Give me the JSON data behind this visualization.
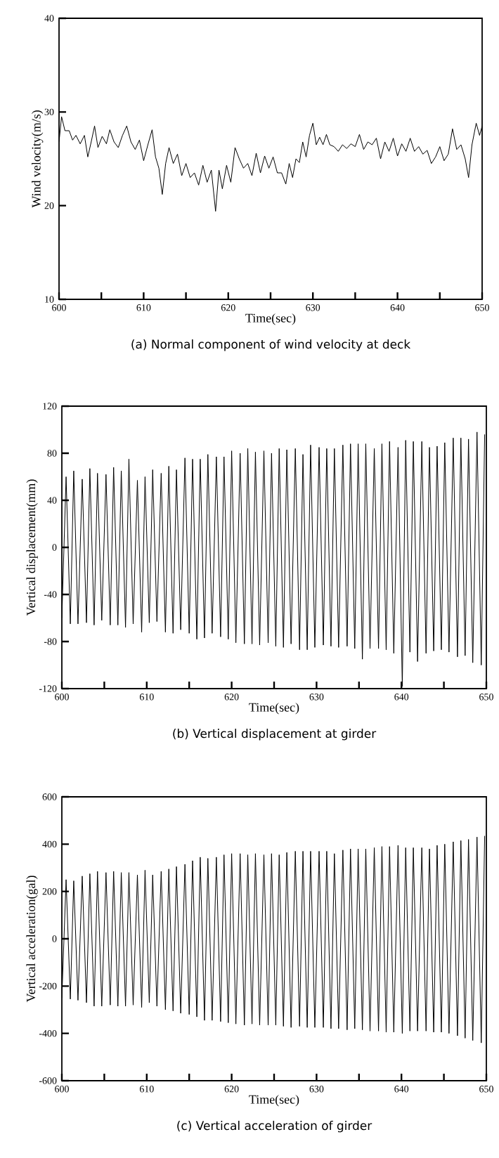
{
  "chart_data": [
    {
      "type": "line",
      "title": "(a)  Normal component of wind velocity at deck",
      "xlabel": "Time(sec)",
      "ylabel": "Wind velocity(m/s)",
      "color": "#000000",
      "x": [
        600.0,
        600.3,
        600.7,
        601.2,
        601.6,
        602.0,
        602.5,
        603.0,
        603.4,
        603.8,
        604.2,
        604.6,
        605.1,
        605.6,
        606.0,
        606.5,
        607.0,
        607.5,
        608.0,
        608.5,
        609.0,
        609.5,
        610.0,
        610.5,
        611.0,
        611.4,
        611.8,
        612.2,
        612.6,
        613.0,
        613.5,
        614.0,
        614.5,
        615.0,
        615.5,
        616.0,
        616.5,
        617.0,
        617.5,
        618.0,
        618.5,
        618.9,
        619.3,
        619.8,
        620.3,
        620.8,
        621.3,
        621.8,
        622.3,
        622.8,
        623.3,
        623.8,
        624.3,
        624.8,
        625.3,
        625.8,
        626.3,
        626.8,
        627.2,
        627.6,
        628.0,
        628.4,
        628.8,
        629.2,
        629.6,
        630.0,
        630.4,
        630.8,
        631.2,
        631.6,
        632.0,
        632.5,
        633.0,
        633.5,
        634.0,
        634.5,
        635.0,
        635.5,
        636.0,
        636.5,
        637.0,
        637.5,
        638.0,
        638.5,
        639.0,
        639.5,
        640.0,
        640.5,
        641.0,
        641.5,
        642.0,
        642.5,
        643.0,
        643.5,
        644.0,
        644.5,
        645.0,
        645.5,
        646.0,
        646.5,
        647.0,
        647.5,
        648.0,
        648.4,
        648.8,
        649.3,
        649.7,
        650.0
      ],
      "values": [
        26.8,
        29.5,
        28,
        28,
        27,
        27.5,
        26.6,
        27.5,
        25.2,
        26.8,
        28.5,
        26.2,
        27.4,
        26.6,
        28.1,
        26.8,
        26.2,
        27.5,
        28.5,
        26.8,
        26,
        27,
        24.8,
        26.5,
        28.1,
        25.2,
        24,
        21.2,
        24.5,
        26.2,
        24.5,
        25.5,
        23.2,
        24.5,
        23,
        23.5,
        22.2,
        24.3,
        22.5,
        23.8,
        19.4,
        23.8,
        21.8,
        24.3,
        22.5,
        26.2,
        25,
        24,
        24.5,
        23.2,
        25.6,
        23.5,
        25.3,
        24,
        25.2,
        23.5,
        23.5,
        22.3,
        24.5,
        23,
        25,
        24.6,
        26.8,
        25.2,
        27.5,
        28.8,
        26.5,
        27.3,
        26.5,
        27.6,
        26.5,
        26.3,
        25.8,
        26.5,
        26.1,
        26.6,
        26.3,
        27.6,
        26,
        26.8,
        26.5,
        27.2,
        25,
        26.8,
        25.8,
        27.2,
        25.3,
        26.6,
        25.8,
        27.2,
        25.8,
        26.3,
        25.5,
        25.9,
        24.5,
        25.2,
        26.3,
        24.8,
        25.5,
        28.2,
        26,
        26.5,
        25,
        23,
        26.5,
        28.8,
        27.5,
        28.5
      ],
      "xlim": [
        600,
        650
      ],
      "ylim": [
        10,
        40
      ],
      "xticks": [
        600,
        {
          "value": 605,
          "label": null
        },
        610,
        {
          "value": 615,
          "label": null
        },
        620,
        {
          "value": 625,
          "label": null
        },
        630,
        {
          "value": 635,
          "label": null
        },
        640,
        {
          "value": 645,
          "label": null
        },
        650
      ],
      "yticks": [
        10,
        20,
        30,
        40
      ]
    },
    {
      "type": "line",
      "title": "(b)  Vertical displacement at girder",
      "xlabel": "Time(sec)",
      "ylabel": "Vertical displacement(mm)",
      "color": "#000000",
      "x": [
        600.0,
        600.5,
        601.0,
        601.4,
        601.9,
        602.4,
        602.9,
        603.3,
        603.8,
        604.2,
        604.7,
        605.2,
        605.7,
        606.1,
        606.6,
        607.0,
        607.5,
        607.9,
        608.4,
        608.9,
        609.4,
        609.8,
        610.3,
        610.7,
        611.2,
        611.7,
        612.2,
        612.6,
        613.1,
        613.5,
        614.0,
        614.5,
        615.0,
        615.4,
        615.9,
        616.3,
        616.8,
        617.2,
        617.7,
        618.2,
        618.7,
        619.1,
        619.6,
        620.0,
        620.5,
        621.0,
        621.5,
        621.9,
        622.4,
        622.8,
        623.3,
        623.8,
        624.3,
        624.7,
        625.2,
        625.6,
        626.1,
        626.5,
        627.0,
        627.5,
        628.0,
        628.4,
        628.9,
        629.3,
        629.8,
        630.3,
        630.8,
        631.2,
        631.7,
        632.1,
        632.6,
        633.1,
        633.6,
        634.0,
        634.5,
        634.9,
        635.4,
        635.8,
        636.3,
        636.8,
        637.3,
        637.7,
        638.2,
        638.6,
        639.1,
        639.6,
        640.1,
        640.5,
        641.0,
        641.4,
        641.9,
        642.4,
        642.9,
        643.3,
        643.8,
        644.2,
        644.7,
        645.1,
        645.6,
        646.1,
        646.6,
        647.0,
        647.5,
        647.9,
        648.4,
        648.9,
        649.4,
        649.8
      ],
      "values": [
        -60,
        60,
        -65,
        65,
        -65,
        58,
        -64,
        67,
        -66,
        63,
        -62,
        62,
        -66,
        68,
        -66,
        65,
        -68,
        75,
        -65,
        57,
        -72,
        60,
        -64,
        66,
        -63,
        63,
        -72,
        69,
        -73,
        66,
        -70,
        76,
        -73,
        75,
        -78,
        75,
        -77,
        79,
        -73,
        77,
        -76,
        77,
        -78,
        82,
        -81,
        80,
        -82,
        84,
        -82,
        81,
        -83,
        82,
        -81,
        80,
        -84,
        84,
        -85,
        83,
        -82,
        84,
        -87,
        79,
        -87,
        87,
        -85,
        85,
        -83,
        84,
        -84,
        84,
        -85,
        87,
        -84,
        88,
        -86,
        88,
        -95,
        88,
        -86,
        84,
        -86,
        88,
        -87,
        90,
        -90,
        85,
        -118,
        91,
        -89,
        90,
        -97,
        90,
        -90,
        85,
        -88,
        86,
        -87,
        89,
        -89,
        93,
        -93,
        93,
        -92,
        92,
        -98,
        98,
        -100,
        96
      ],
      "xlim": [
        600,
        650
      ],
      "ylim": [
        -120,
        120
      ],
      "xticks": [
        600,
        {
          "value": 605,
          "label": null
        },
        610,
        {
          "value": 615,
          "label": null
        },
        620,
        {
          "value": 625,
          "label": null
        },
        630,
        {
          "value": 635,
          "label": null
        },
        640,
        {
          "value": 645,
          "label": null
        },
        650
      ],
      "yticks": [
        -120,
        -80,
        -40,
        0,
        40,
        80,
        120
      ]
    },
    {
      "type": "line",
      "title": "(c)  Vertical acceleration of girder",
      "xlabel": "Time(sec)",
      "ylabel": "Vertical acceleration(gal)",
      "color": "#000000",
      "x": [
        600.0,
        600.5,
        601.0,
        601.4,
        601.9,
        602.4,
        602.9,
        603.3,
        603.8,
        604.2,
        604.7,
        605.2,
        605.7,
        606.1,
        606.6,
        607.0,
        607.5,
        607.9,
        608.4,
        608.9,
        609.4,
        609.8,
        610.3,
        610.7,
        611.2,
        611.7,
        612.2,
        612.6,
        613.1,
        613.5,
        614.0,
        614.5,
        615.0,
        615.4,
        615.9,
        616.3,
        616.8,
        617.2,
        617.7,
        618.2,
        618.7,
        619.1,
        619.6,
        620.0,
        620.5,
        621.0,
        621.5,
        621.9,
        622.4,
        622.8,
        623.3,
        623.8,
        624.3,
        624.7,
        625.2,
        625.6,
        626.1,
        626.5,
        627.0,
        627.5,
        628.0,
        628.4,
        628.9,
        629.3,
        629.8,
        630.3,
        630.8,
        631.2,
        631.7,
        632.1,
        632.6,
        633.1,
        633.6,
        634.0,
        634.5,
        634.9,
        635.4,
        635.8,
        636.3,
        636.8,
        637.3,
        637.7,
        638.2,
        638.6,
        639.1,
        639.6,
        640.1,
        640.5,
        641.0,
        641.4,
        641.9,
        642.4,
        642.9,
        643.3,
        643.8,
        644.2,
        644.7,
        645.1,
        645.6,
        646.1,
        646.6,
        647.0,
        647.5,
        647.9,
        648.4,
        648.9,
        649.4,
        649.8
      ],
      "values": [
        -250,
        250,
        -255,
        245,
        -260,
        265,
        -270,
        275,
        -285,
        285,
        -285,
        280,
        -280,
        285,
        -285,
        280,
        -285,
        280,
        -280,
        270,
        -290,
        290,
        -270,
        270,
        -285,
        285,
        -300,
        295,
        -305,
        305,
        -315,
        315,
        -320,
        330,
        -330,
        345,
        -345,
        340,
        -345,
        345,
        -350,
        355,
        -355,
        360,
        -360,
        360,
        -365,
        355,
        -360,
        360,
        -365,
        355,
        -365,
        360,
        -365,
        355,
        -370,
        365,
        -375,
        370,
        -370,
        370,
        -375,
        370,
        -375,
        370,
        -375,
        370,
        -380,
        360,
        -380,
        375,
        -385,
        380,
        -380,
        380,
        -385,
        380,
        -390,
        385,
        -390,
        390,
        -395,
        390,
        -395,
        395,
        -400,
        385,
        -390,
        385,
        -390,
        385,
        -390,
        380,
        -395,
        395,
        -395,
        400,
        -400,
        410,
        -410,
        415,
        -420,
        420,
        -430,
        430,
        -440,
        435
      ],
      "xlim": [
        600,
        650
      ],
      "ylim": [
        -600,
        600
      ],
      "xticks": [
        600,
        {
          "value": 605,
          "label": null
        },
        610,
        {
          "value": 615,
          "label": null
        },
        620,
        {
          "value": 625,
          "label": null
        },
        630,
        {
          "value": 635,
          "label": null
        },
        640,
        {
          "value": 645,
          "label": null
        },
        650
      ],
      "yticks": [
        -600,
        -400,
        -200,
        0,
        200,
        400,
        600
      ]
    }
  ]
}
